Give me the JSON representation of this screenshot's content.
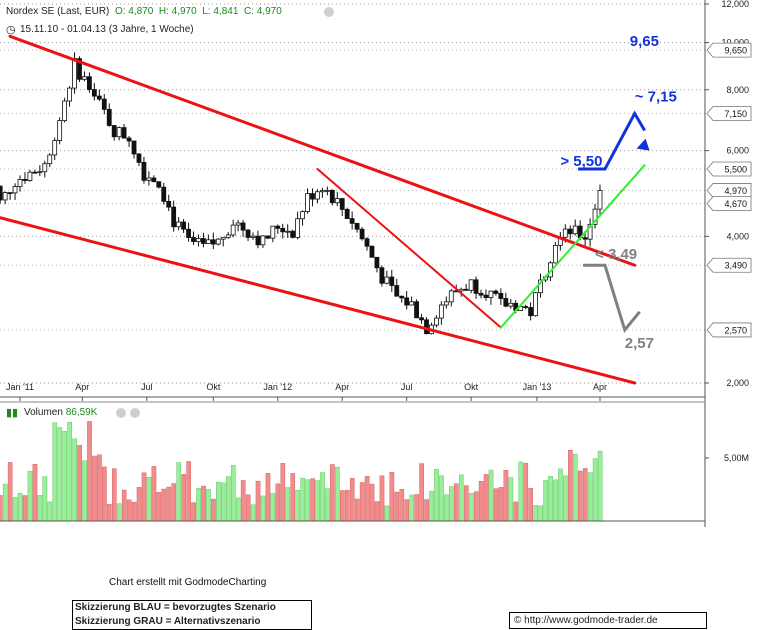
{
  "header": {
    "symbol_line": "Nordex SE (Last, EUR)",
    "open_label": "O: 4,870",
    "high_label": "H: 4,970",
    "low_label": "L: 4,841",
    "close_label": "C: 4,970",
    "period": "15.11.10 - 01.04.13 (3 Jahre, 1 Woche)"
  },
  "volume_header": {
    "label": "Volumen",
    "value": "86,59K"
  },
  "credit": "Chart erstellt mit GodmodeCharting",
  "legend": {
    "line1": "Skizzierung BLAU = bevorzugtes Szenario",
    "line2": "Skizzierung GRAU = Alternativszenario"
  },
  "source": "http://www.godmode-trader.de",
  "copyright_symbol": "©",
  "colors": {
    "up": "#2ecc2e",
    "down": "#ff3333",
    "vol_up": "#99ee99",
    "vol_down": "#f28c8c",
    "channel": "#ee1111",
    "green_trend": "#33ee33",
    "blue_scenario": "#1133dd",
    "grey_scenario": "#808080"
  },
  "chart_data": {
    "type": "candlestick",
    "title": "Nordex SE (Last, EUR)",
    "x_range": [
      "2010-11-15",
      "2013-04-01"
    ],
    "y_scale": "log",
    "y_range": [
      2.0,
      12.0
    ],
    "y_ticks": [
      "12,000",
      "10,000",
      "8,000",
      "6,000",
      "4,000",
      "2,000"
    ],
    "x_ticks": [
      "Jan '11",
      "Apr",
      "Jul",
      "Okt",
      "Jan '12",
      "Apr",
      "Jul",
      "Okt",
      "Jan '13",
      "Apr"
    ],
    "x_tick_dates": [
      "2011-01-03",
      "2011-04-01",
      "2011-07-01",
      "2011-10-03",
      "2012-01-02",
      "2012-04-02",
      "2012-07-02",
      "2012-10-01",
      "2013-01-02",
      "2013-04-01"
    ],
    "price_labels": [
      "9,650",
      "7,150",
      "5,500",
      "4,970",
      "4,670",
      "3,490",
      "2,570"
    ],
    "price_label_values": [
      9.65,
      7.15,
      5.5,
      4.97,
      4.67,
      3.49,
      2.57
    ],
    "price_path": [
      [
        "2010-11-15",
        5.8
      ],
      [
        "2010-12-06",
        4.7
      ],
      [
        "2010-12-27",
        5.2
      ],
      [
        "2011-01-17",
        5.4
      ],
      [
        "2011-02-07",
        5.6
      ],
      [
        "2011-02-28",
        7.0
      ],
      [
        "2011-03-21",
        9.0
      ],
      [
        "2011-04-04",
        8.4
      ],
      [
        "2011-04-25",
        7.5
      ],
      [
        "2011-05-16",
        6.6
      ],
      [
        "2011-06-06",
        6.4
      ],
      [
        "2011-06-27",
        5.4
      ],
      [
        "2011-07-18",
        5.2
      ],
      [
        "2011-08-08",
        4.3
      ],
      [
        "2011-08-29",
        3.9
      ],
      [
        "2011-09-19",
        3.8
      ],
      [
        "2011-10-10",
        3.9
      ],
      [
        "2011-10-31",
        4.3
      ],
      [
        "2011-11-21",
        4.1
      ],
      [
        "2011-12-12",
        3.9
      ],
      [
        "2012-01-02",
        4.2
      ],
      [
        "2012-01-23",
        4.1
      ],
      [
        "2012-02-13",
        4.8
      ],
      [
        "2012-03-05",
        5.1
      ],
      [
        "2012-03-26",
        4.7
      ],
      [
        "2012-04-16",
        4.3
      ],
      [
        "2012-05-07",
        3.8
      ],
      [
        "2012-05-28",
        3.3
      ],
      [
        "2012-06-18",
        3.0
      ],
      [
        "2012-07-09",
        2.9
      ],
      [
        "2012-07-30",
        2.6
      ],
      [
        "2012-08-20",
        2.9
      ],
      [
        "2012-09-10",
        3.1
      ],
      [
        "2012-10-01",
        3.2
      ],
      [
        "2012-10-22",
        3.1
      ],
      [
        "2012-11-12",
        2.9
      ],
      [
        "2012-12-03",
        2.9
      ],
      [
        "2012-12-24",
        2.8
      ],
      [
        "2013-01-07",
        3.2
      ],
      [
        "2013-01-28",
        3.9
      ],
      [
        "2013-02-18",
        4.1
      ],
      [
        "2013-03-11",
        4.0
      ],
      [
        "2013-03-25",
        4.6
      ],
      [
        "2013-04-01",
        4.97
      ]
    ],
    "volume_axis_label": "5,00M",
    "trend_lines": [
      {
        "name": "channel-upper",
        "points": [
          [
            "2010-12-20",
            10.3
          ],
          [
            "2013-05-20",
            3.49
          ]
        ]
      },
      {
        "name": "channel-lower",
        "points": [
          [
            "2010-11-15",
            4.45
          ],
          [
            "2013-05-20",
            2.0
          ]
        ]
      },
      {
        "name": "decline-line",
        "points": [
          [
            "2012-02-27",
            5.5
          ],
          [
            "2012-11-12",
            2.6
          ]
        ]
      },
      {
        "name": "green-support",
        "points": [
          [
            "2012-11-12",
            2.6
          ],
          [
            "2013-06-03",
            5.6
          ]
        ]
      }
    ],
    "annotations": [
      {
        "text": "9,65",
        "color": "blue"
      },
      {
        "text": "~ 7,15",
        "color": "blue"
      },
      {
        "text": "> 5,50",
        "color": "blue"
      },
      {
        "text": "< 3,49",
        "color": "grey"
      },
      {
        "text": "2,57",
        "color": "grey"
      }
    ]
  }
}
